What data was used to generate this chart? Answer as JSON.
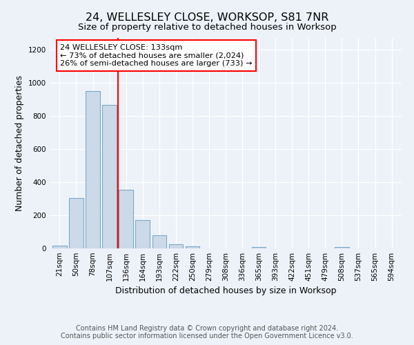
{
  "title": "24, WELLESLEY CLOSE, WORKSOP, S81 7NR",
  "subtitle": "Size of property relative to detached houses in Worksop",
  "xlabel": "Distribution of detached houses by size in Worksop",
  "ylabel": "Number of detached properties",
  "footer": "Contains HM Land Registry data © Crown copyright and database right 2024.\nContains public sector information licensed under the Open Government Licence v3.0.",
  "categories": [
    "21sqm",
    "50sqm",
    "78sqm",
    "107sqm",
    "136sqm",
    "164sqm",
    "193sqm",
    "222sqm",
    "250sqm",
    "279sqm",
    "308sqm",
    "336sqm",
    "365sqm",
    "393sqm",
    "422sqm",
    "451sqm",
    "479sqm",
    "508sqm",
    "537sqm",
    "565sqm",
    "594sqm"
  ],
  "values": [
    15,
    305,
    950,
    865,
    355,
    170,
    80,
    25,
    13,
    0,
    0,
    0,
    10,
    0,
    0,
    0,
    0,
    10,
    0,
    0,
    0
  ],
  "bar_color": "#ccd9e8",
  "bar_edge_color": "#7aaac8",
  "red_line_index": 4,
  "annotation_line1": "24 WELLESLEY CLOSE: 133sqm",
  "annotation_line2": "← 73% of detached houses are smaller (2,024)",
  "annotation_line3": "26% of semi-detached houses are larger (733) →",
  "ylim": [
    0,
    1270
  ],
  "yticks": [
    0,
    200,
    400,
    600,
    800,
    1000,
    1200
  ],
  "background_color": "#edf2f8",
  "grid_color": "#ffffff",
  "title_fontsize": 11.5,
  "subtitle_fontsize": 9.5,
  "axis_label_fontsize": 9,
  "tick_fontsize": 7.5,
  "footer_fontsize": 7
}
